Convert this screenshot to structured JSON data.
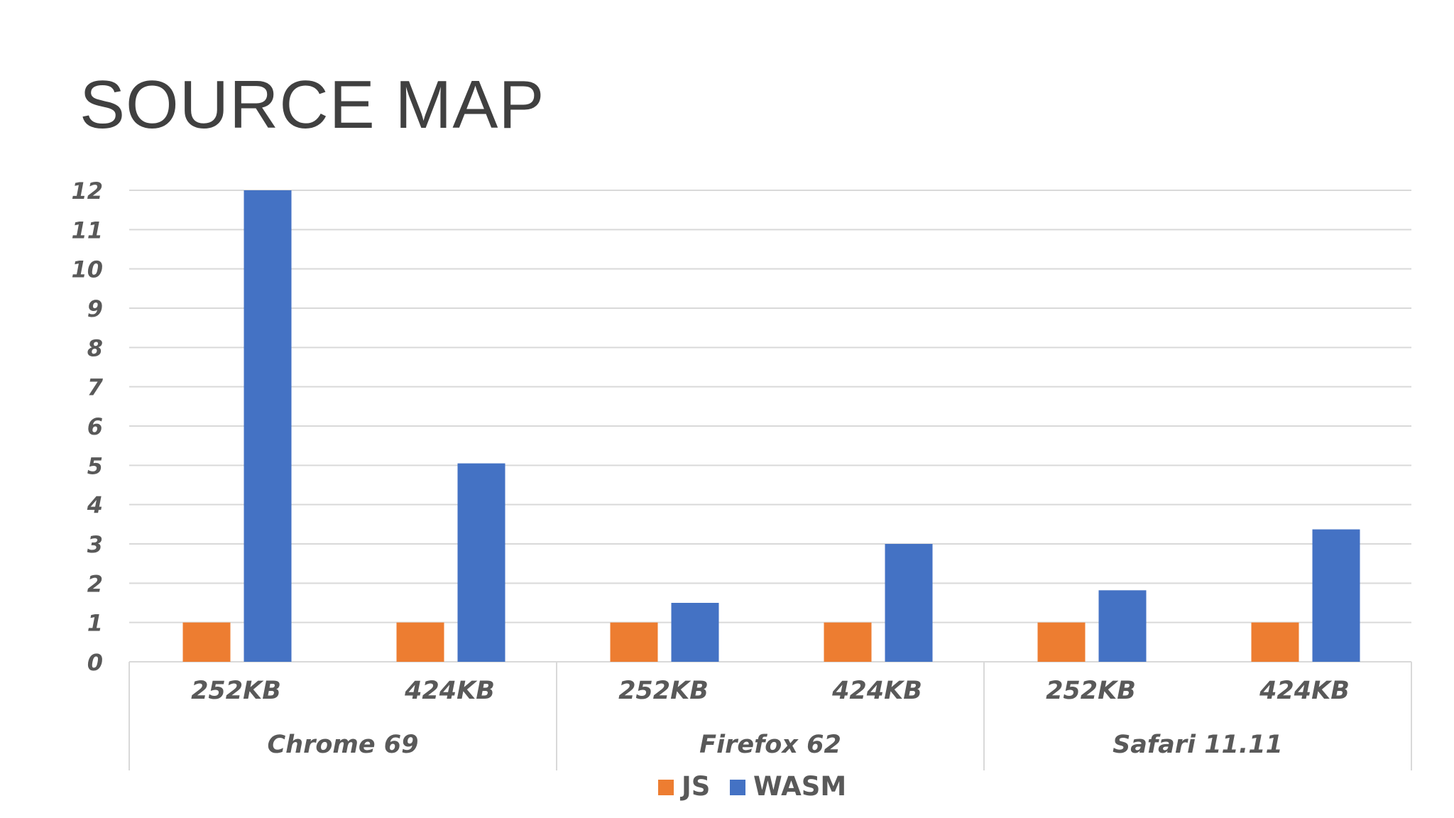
{
  "slide": {
    "title": "SOURCE MAP"
  },
  "colors": {
    "js": "#ED7D31",
    "wasm": "#4472C4",
    "grid": "#D9D9D9",
    "text": "#595959",
    "title": "#404040"
  },
  "chart_data": {
    "type": "bar",
    "title": "",
    "xlabel": "",
    "ylabel": "",
    "ylim": [
      0,
      12
    ],
    "yticks": [
      "0",
      "1",
      "2",
      "3",
      "4",
      "5",
      "6",
      "7",
      "8",
      "9",
      "10",
      "11",
      "12"
    ],
    "grid": true,
    "legend_position": "bottom",
    "groups": [
      {
        "name": "Chrome 69",
        "categories": [
          "252KB",
          "424KB"
        ]
      },
      {
        "name": "Firefox 62",
        "categories": [
          "252KB",
          "424KB"
        ]
      },
      {
        "name": "Safari 11.11",
        "categories": [
          "252KB",
          "424KB"
        ]
      }
    ],
    "categories": [
      "252KB",
      "424KB",
      "252KB",
      "424KB",
      "252KB",
      "424KB"
    ],
    "series": [
      {
        "name": "JS",
        "color": "#ED7D31",
        "values": [
          1,
          1,
          1,
          1,
          1,
          1
        ]
      },
      {
        "name": "WASM",
        "color": "#4472C4",
        "values": [
          12,
          5.05,
          1.5,
          3,
          1.82,
          3.37
        ]
      }
    ]
  }
}
